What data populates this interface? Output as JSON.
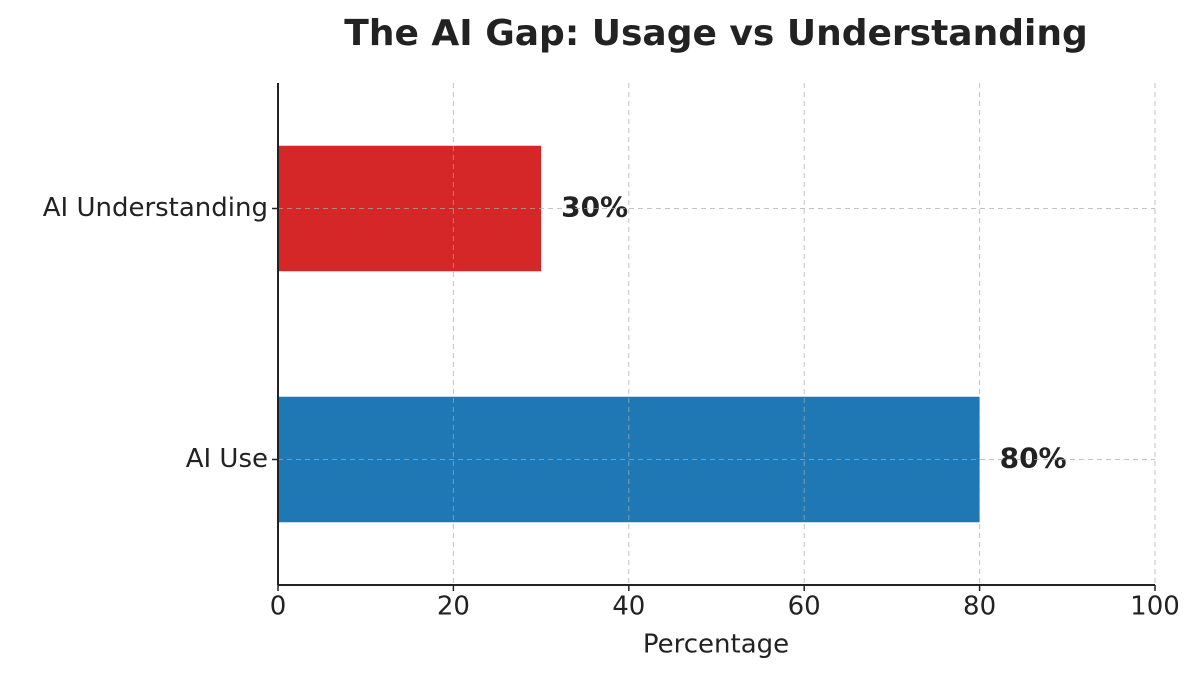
{
  "chart_data": {
    "type": "barh",
    "title": "The AI Gap: Usage vs Understanding",
    "categories": [
      "AI Use",
      "AI Understanding"
    ],
    "values": [
      80,
      30
    ],
    "value_labels": [
      "80%",
      "30%"
    ],
    "colors": [
      "#1f77b4",
      "#d62728"
    ],
    "xlabel": "Percentage",
    "xlim": [
      0,
      100
    ],
    "xticks": [
      0,
      20,
      40,
      60,
      80,
      100
    ],
    "grid": true
  }
}
